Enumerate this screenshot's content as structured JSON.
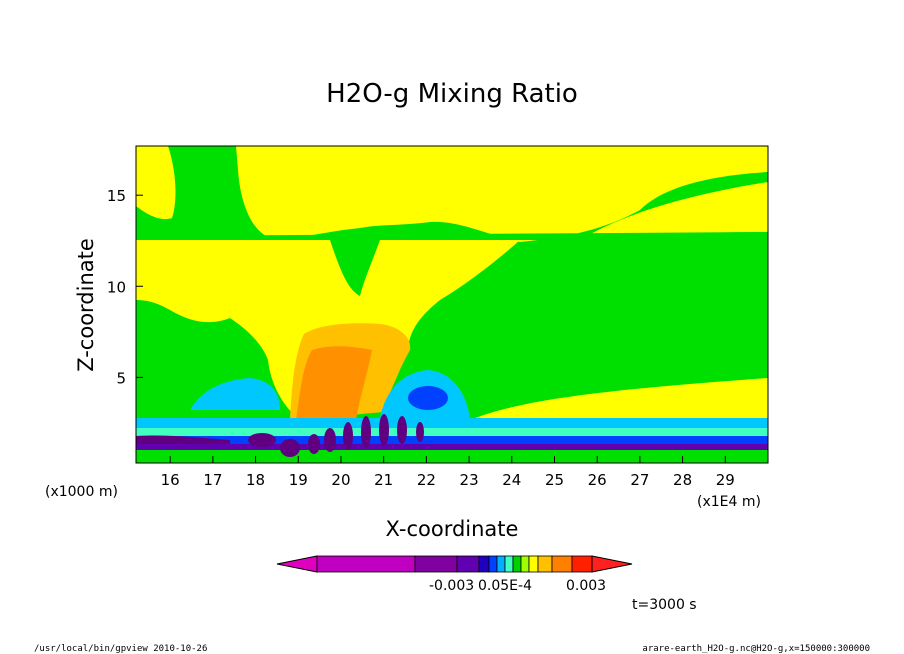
{
  "chart_data": {
    "type": "heatmap",
    "title": "H2O-g Mixing Ratio",
    "xlabel": "X-coordinate",
    "ylabel": "Z-coordinate",
    "x_unit": "(x1E4 m)",
    "y_unit": "(x1000 m)",
    "xlim": [
      15.2,
      30.0
    ],
    "ylim": [
      0.3,
      17.7
    ],
    "x_ticks": [
      16,
      17,
      18,
      19,
      20,
      21,
      22,
      23,
      24,
      25,
      26,
      27,
      28,
      29
    ],
    "y_ticks": [
      5,
      10,
      15
    ],
    "grid": false,
    "colorbar": {
      "placement": "bottom",
      "labels": [
        "-0.003",
        "0.05E-4",
        "0.003"
      ],
      "colors": [
        "#c000c0",
        "#8000a0",
        "#6000b0",
        "#2000c0",
        "#0040ff",
        "#00b0ff",
        "#40ffc0",
        "#00d000",
        "#a0ff00",
        "#ffff00",
        "#ffc000",
        "#ff8000",
        "#ff2000"
      ]
    },
    "annotation": "t=3000 s"
  },
  "footer": {
    "left": "/usr/local/bin/gpview  2010-10-26",
    "right": "arare-earth_H2O-g.nc@H2O-g,x=150000:300000"
  },
  "colors": {
    "background_field": "#00e000",
    "moist_yellow": "#ffff00",
    "light_orange": "#ffc000",
    "orange": "#ff9000",
    "cyan": "#00c8ff",
    "blue": "#0040ff",
    "dark_purple": "#600080"
  }
}
